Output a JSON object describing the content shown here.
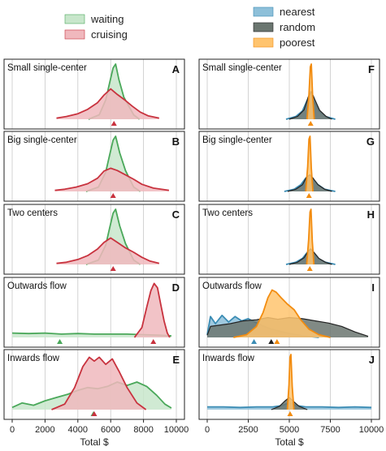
{
  "colors": {
    "waiting": "#4aa85a",
    "waiting_fill": "#c8e6cb",
    "cruising": "#c8323e",
    "cruising_fill": "#f0b8bd",
    "nearest": "#3b8cb4",
    "nearest_fill": "#8ec0d9",
    "random": "#222222",
    "random_fill": "#6b7670",
    "poorest": "#f28c10",
    "poorest_fill": "#ffc46e",
    "grid": "#c8c8c8",
    "frame": "#222222"
  },
  "legend_left": [
    {
      "label": "waiting",
      "key": "waiting"
    },
    {
      "label": "cruising",
      "key": "cruising"
    }
  ],
  "legend_right": [
    {
      "label": "nearest",
      "key": "nearest"
    },
    {
      "label": "random",
      "key": "random"
    },
    {
      "label": "poorest",
      "key": "poorest"
    }
  ],
  "chart_data": [
    {
      "type": "area",
      "column": "left",
      "row": 0,
      "title": "Small single-center",
      "letter": "A",
      "xlim": [
        0,
        10000
      ],
      "xticks": [
        0,
        2000,
        4000,
        6000,
        8000,
        10000
      ],
      "series": [
        {
          "name": "waiting",
          "color_key": "waiting",
          "x": [
            4650,
            5300,
            5700,
            5950,
            6150,
            6300,
            6500,
            6800,
            7400,
            7750
          ],
          "y": [
            0.0,
            0.08,
            0.35,
            0.68,
            0.93,
            1.0,
            0.72,
            0.4,
            0.08,
            0.0
          ]
        },
        {
          "name": "cruising",
          "color_key": "cruising",
          "x": [
            2700,
            3300,
            4000,
            4600,
            5200,
            5600,
            6000,
            6400,
            6900,
            7300,
            7800,
            8300,
            8950
          ],
          "y": [
            0.02,
            0.05,
            0.1,
            0.18,
            0.3,
            0.44,
            0.55,
            0.45,
            0.34,
            0.24,
            0.13,
            0.06,
            0.02
          ]
        }
      ],
      "markers": [
        {
          "x": 6200,
          "color_key": "cruising"
        }
      ]
    },
    {
      "type": "area",
      "column": "left",
      "row": 1,
      "title": "Big single-center",
      "letter": "B",
      "xlim": [
        0,
        10000
      ],
      "xticks": [
        0,
        2000,
        4000,
        6000,
        8000,
        10000
      ],
      "series": [
        {
          "name": "waiting",
          "color_key": "waiting",
          "x": [
            4500,
            5250,
            5700,
            5950,
            6150,
            6300,
            6550,
            6900,
            7400,
            7800
          ],
          "y": [
            0.0,
            0.08,
            0.35,
            0.68,
            0.93,
            1.0,
            0.7,
            0.38,
            0.08,
            0.0
          ]
        },
        {
          "name": "cruising",
          "color_key": "cruising",
          "x": [
            2600,
            3200,
            3900,
            4600,
            5200,
            5600,
            6000,
            6400,
            6900,
            7400,
            7900,
            8600,
            9550
          ],
          "y": [
            0.02,
            0.04,
            0.08,
            0.14,
            0.24,
            0.37,
            0.42,
            0.38,
            0.3,
            0.22,
            0.13,
            0.06,
            0.02
          ]
        }
      ],
      "markers": [
        {
          "x": 6150,
          "color_key": "cruising"
        }
      ]
    },
    {
      "type": "area",
      "column": "left",
      "row": 2,
      "title": "Two centers",
      "letter": "C",
      "xlim": [
        0,
        10000
      ],
      "xticks": [
        0,
        2000,
        4000,
        6000,
        8000,
        10000
      ],
      "series": [
        {
          "name": "waiting",
          "color_key": "waiting",
          "x": [
            4500,
            5250,
            5700,
            5950,
            6150,
            6300,
            6550,
            6900,
            7400,
            7800
          ],
          "y": [
            0.0,
            0.08,
            0.35,
            0.68,
            0.93,
            1.0,
            0.7,
            0.38,
            0.08,
            0.0
          ]
        },
        {
          "name": "cruising",
          "color_key": "cruising",
          "x": [
            2700,
            3300,
            4000,
            4600,
            5200,
            5600,
            6000,
            6400,
            6900,
            7400,
            7900,
            8400,
            8950
          ],
          "y": [
            0.02,
            0.04,
            0.09,
            0.16,
            0.28,
            0.4,
            0.48,
            0.4,
            0.3,
            0.22,
            0.13,
            0.06,
            0.02
          ]
        }
      ],
      "markers": [
        {
          "x": 6150,
          "color_key": "cruising"
        }
      ]
    },
    {
      "type": "area",
      "column": "left",
      "row": 3,
      "title": "Outwards flow",
      "letter": "D",
      "xlim": [
        0,
        10000
      ],
      "xticks": [
        0,
        2000,
        4000,
        6000,
        8000,
        10000
      ],
      "series": [
        {
          "name": "waiting",
          "color_key": "waiting",
          "x": [
            0,
            1000,
            2000,
            3000,
            4000,
            5000,
            6000,
            7000,
            8000,
            9000,
            9700
          ],
          "y": [
            0.08,
            0.07,
            0.08,
            0.06,
            0.07,
            0.06,
            0.06,
            0.06,
            0.05,
            0.04,
            0.03
          ]
        },
        {
          "name": "cruising",
          "color_key": "cruising",
          "x": [
            7450,
            7900,
            8200,
            8450,
            8650,
            8850,
            9050,
            9250,
            9450,
            9600
          ],
          "y": [
            0.0,
            0.18,
            0.55,
            0.85,
            0.98,
            0.9,
            0.6,
            0.3,
            0.08,
            0.0
          ]
        }
      ],
      "markers": [
        {
          "x": 2900,
          "color_key": "waiting"
        },
        {
          "x": 8600,
          "color_key": "cruising"
        }
      ]
    },
    {
      "type": "area",
      "column": "left",
      "row": 4,
      "title": "Inwards flow",
      "letter": "E",
      "xlim": [
        0,
        10000
      ],
      "xticks": [
        0,
        2000,
        4000,
        6000,
        8000,
        10000
      ],
      "series": [
        {
          "name": "waiting",
          "color_key": "waiting",
          "x": [
            0,
            600,
            1300,
            2000,
            2700,
            3400,
            4000,
            4600,
            5200,
            5800,
            6400,
            7000,
            7600,
            8200,
            8800,
            9300,
            9700
          ],
          "y": [
            0.04,
            0.12,
            0.08,
            0.16,
            0.22,
            0.28,
            0.35,
            0.4,
            0.38,
            0.42,
            0.5,
            0.44,
            0.5,
            0.42,
            0.26,
            0.1,
            0.03
          ]
        },
        {
          "name": "cruising",
          "color_key": "cruising",
          "x": [
            2400,
            3200,
            3800,
            4300,
            4700,
            5000,
            5300,
            5700,
            6100,
            6500,
            7000,
            7600,
            8150
          ],
          "y": [
            0.0,
            0.1,
            0.4,
            0.78,
            0.95,
            0.88,
            0.95,
            0.82,
            0.92,
            0.7,
            0.4,
            0.12,
            0.0
          ]
        }
      ],
      "markers": [
        {
          "x": 4950,
          "color_key": "waiting"
        },
        {
          "x": 5000,
          "color_key": "cruising"
        }
      ]
    },
    {
      "type": "area",
      "column": "right",
      "row": 0,
      "title": "Small single-center",
      "letter": "F",
      "xlim": [
        0,
        10000
      ],
      "xticks": [
        0,
        2500,
        5000,
        7500,
        10000
      ],
      "series": [
        {
          "name": "nearest",
          "color_key": "nearest",
          "x": [
            4800,
            5400,
            5800,
            6100,
            6300,
            6500,
            6800,
            7200,
            7800
          ],
          "y": [
            0.0,
            0.05,
            0.15,
            0.35,
            0.5,
            0.32,
            0.15,
            0.05,
            0.0
          ]
        },
        {
          "name": "random",
          "color_key": "random",
          "x": [
            5000,
            5500,
            5900,
            6150,
            6350,
            6550,
            6850,
            7250,
            7600
          ],
          "y": [
            0.0,
            0.05,
            0.17,
            0.4,
            0.5,
            0.36,
            0.16,
            0.05,
            0.0
          ]
        },
        {
          "name": "poorest",
          "color_key": "poorest",
          "x": [
            6080,
            6200,
            6280,
            6340,
            6420,
            6520
          ],
          "y": [
            0.0,
            0.45,
            0.95,
            1.0,
            0.42,
            0.0
          ]
        }
      ],
      "markers": [
        {
          "x": 6300,
          "color_key": "poorest"
        }
      ]
    },
    {
      "type": "area",
      "column": "right",
      "row": 1,
      "title": "Big single-center",
      "letter": "G",
      "xlim": [
        0,
        10000
      ],
      "xticks": [
        0,
        2500,
        5000,
        7500,
        10000
      ],
      "series": [
        {
          "name": "nearest",
          "color_key": "nearest",
          "x": [
            4700,
            5300,
            5700,
            6000,
            6250,
            6450,
            6750,
            7150,
            7800
          ],
          "y": [
            0.0,
            0.04,
            0.12,
            0.24,
            0.3,
            0.22,
            0.12,
            0.04,
            0.0
          ]
        },
        {
          "name": "random",
          "color_key": "random",
          "x": [
            4900,
            5400,
            5800,
            6050,
            6250,
            6450,
            6750,
            7150,
            7600
          ],
          "y": [
            0.0,
            0.04,
            0.12,
            0.26,
            0.3,
            0.24,
            0.12,
            0.04,
            0.0
          ]
        },
        {
          "name": "poorest",
          "color_key": "poorest",
          "x": [
            6000,
            6120,
            6200,
            6260,
            6340,
            6440
          ],
          "y": [
            0.0,
            0.45,
            0.95,
            1.0,
            0.42,
            0.0
          ]
        }
      ],
      "markers": [
        {
          "x": 6200,
          "color_key": "poorest"
        }
      ]
    },
    {
      "type": "area",
      "column": "right",
      "row": 2,
      "title": "Two centers",
      "letter": "H",
      "xlim": [
        0,
        10000
      ],
      "xticks": [
        0,
        2500,
        5000,
        7500,
        10000
      ],
      "series": [
        {
          "name": "nearest",
          "color_key": "nearest",
          "x": [
            4800,
            5400,
            5800,
            6100,
            6300,
            6500,
            6800,
            7200,
            7800
          ],
          "y": [
            0.0,
            0.04,
            0.11,
            0.22,
            0.28,
            0.2,
            0.1,
            0.04,
            0.0
          ]
        },
        {
          "name": "random",
          "color_key": "random",
          "x": [
            5000,
            5500,
            5900,
            6150,
            6300,
            6500,
            6800,
            7200,
            7600
          ],
          "y": [
            0.0,
            0.04,
            0.12,
            0.24,
            0.28,
            0.22,
            0.11,
            0.04,
            0.0
          ]
        },
        {
          "name": "poorest",
          "color_key": "poorest",
          "x": [
            6060,
            6180,
            6260,
            6320,
            6400,
            6500
          ],
          "y": [
            0.0,
            0.45,
            0.95,
            1.0,
            0.42,
            0.0
          ]
        }
      ],
      "markers": [
        {
          "x": 6250,
          "color_key": "poorest"
        }
      ]
    },
    {
      "type": "area",
      "column": "right",
      "row": 3,
      "title": "Outwards flow",
      "letter": "I",
      "xlim": [
        0,
        10000
      ],
      "xticks": [
        0,
        2500,
        5000,
        7500,
        10000
      ],
      "series": [
        {
          "name": "nearest",
          "color_key": "nearest",
          "x": [
            0,
            200,
            500,
            900,
            1300,
            1700,
            2100,
            2500,
            2900,
            3300,
            3800,
            4300,
            5000,
            5800,
            6800
          ],
          "y": [
            0.05,
            0.38,
            0.25,
            0.4,
            0.28,
            0.38,
            0.3,
            0.34,
            0.28,
            0.22,
            0.16,
            0.12,
            0.07,
            0.03,
            0.0
          ]
        },
        {
          "name": "random",
          "color_key": "random",
          "x": [
            0,
            200,
            700,
            1400,
            2200,
            3000,
            3700,
            4300,
            5000,
            5800,
            6600,
            7400,
            8200,
            9000,
            9800
          ],
          "y": [
            0.04,
            0.2,
            0.22,
            0.25,
            0.3,
            0.32,
            0.36,
            0.33,
            0.36,
            0.34,
            0.3,
            0.26,
            0.2,
            0.1,
            0.02
          ]
        },
        {
          "name": "poorest",
          "color_key": "poorest",
          "x": [
            1600,
            2400,
            3000,
            3400,
            3700,
            3950,
            4200,
            4500,
            4900,
            5300,
            5700,
            6200,
            6800,
            7500
          ],
          "y": [
            0.0,
            0.05,
            0.2,
            0.45,
            0.72,
            0.86,
            0.82,
            0.72,
            0.6,
            0.5,
            0.32,
            0.15,
            0.05,
            0.0
          ]
        }
      ],
      "markers": [
        {
          "x": 2850,
          "color_key": "nearest"
        },
        {
          "x": 3900,
          "color_key": "random"
        },
        {
          "x": 4250,
          "color_key": "poorest"
        }
      ]
    },
    {
      "type": "area",
      "column": "right",
      "row": 4,
      "title": "Inwards flow",
      "letter": "J",
      "xlim": [
        0,
        10000
      ],
      "xticks": [
        0,
        2500,
        5000,
        7500,
        10000
      ],
      "series": [
        {
          "name": "nearest",
          "color_key": "nearest",
          "x": [
            0,
            1000,
            2000,
            3000,
            4000,
            4500,
            5000,
            5500,
            6000,
            7000,
            8000,
            9000,
            10000
          ],
          "y": [
            0.05,
            0.05,
            0.04,
            0.05,
            0.05,
            0.07,
            0.12,
            0.07,
            0.05,
            0.05,
            0.04,
            0.05,
            0.04
          ]
        },
        {
          "name": "random",
          "color_key": "random",
          "x": [
            3900,
            4400,
            4750,
            5000,
            5250,
            5600,
            6100
          ],
          "y": [
            0.0,
            0.06,
            0.16,
            0.22,
            0.15,
            0.06,
            0.0
          ]
        },
        {
          "name": "poorest",
          "color_key": "poorest",
          "x": [
            4880,
            4980,
            5040,
            5100,
            5180,
            5280
          ],
          "y": [
            0.0,
            0.45,
            0.95,
            1.0,
            0.42,
            0.0
          ]
        }
      ],
      "markers": [
        {
          "x": 5050,
          "color_key": "poorest"
        }
      ]
    }
  ],
  "xlabel": "Total $"
}
